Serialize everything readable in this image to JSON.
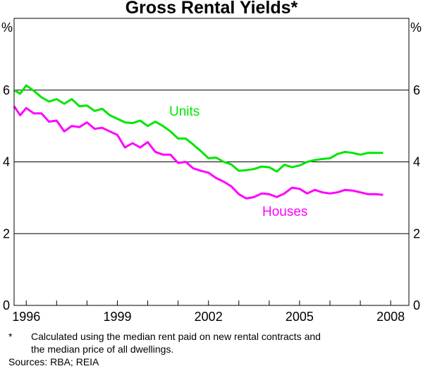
{
  "chart_data": {
    "type": "line",
    "title": "Gross Rental Yields*",
    "ylabel_left": "%",
    "ylabel_right": "%",
    "xlim": [
      1995.6,
      2008.6
    ],
    "ylim": [
      0,
      8
    ],
    "yticks": [
      0,
      2,
      4,
      6
    ],
    "xticks": [
      1996,
      1999,
      2002,
      2005,
      2008
    ],
    "grid": "horizontal",
    "series": [
      {
        "name": "Units",
        "color": "#00e600",
        "x": [
          1995.6,
          1995.8,
          1996.0,
          1996.25,
          1996.5,
          1996.75,
          1997.0,
          1997.25,
          1997.5,
          1997.75,
          1998.0,
          1998.25,
          1998.5,
          1998.75,
          1999.0,
          1999.25,
          1999.5,
          1999.75,
          2000.0,
          2000.25,
          2000.5,
          2000.75,
          2001.0,
          2001.25,
          2001.5,
          2001.75,
          2002.0,
          2002.25,
          2002.5,
          2002.75,
          2003.0,
          2003.25,
          2003.5,
          2003.75,
          2004.0,
          2004.25,
          2004.5,
          2004.75,
          2005.0,
          2005.25,
          2005.5,
          2005.75,
          2006.0,
          2006.25,
          2006.5,
          2006.75,
          2007.0,
          2007.25,
          2007.5,
          2007.75
        ],
        "values": [
          6.0,
          5.9,
          6.13,
          5.98,
          5.8,
          5.68,
          5.75,
          5.62,
          5.75,
          5.55,
          5.57,
          5.42,
          5.48,
          5.3,
          5.2,
          5.1,
          5.08,
          5.15,
          5.0,
          5.12,
          5.0,
          4.85,
          4.65,
          4.65,
          4.48,
          4.3,
          4.1,
          4.12,
          4.0,
          3.93,
          3.75,
          3.77,
          3.8,
          3.87,
          3.85,
          3.73,
          3.92,
          3.85,
          3.9,
          4.0,
          4.05,
          4.08,
          4.1,
          4.22,
          4.28,
          4.25,
          4.2,
          4.25,
          4.25,
          4.25
        ]
      },
      {
        "name": "Houses",
        "color": "#ff00ff",
        "x": [
          1995.6,
          1995.8,
          1996.0,
          1996.25,
          1996.5,
          1996.75,
          1997.0,
          1997.25,
          1997.5,
          1997.75,
          1998.0,
          1998.25,
          1998.5,
          1998.75,
          1999.0,
          1999.25,
          1999.5,
          1999.75,
          2000.0,
          2000.25,
          2000.5,
          2000.75,
          2001.0,
          2001.25,
          2001.5,
          2001.75,
          2002.0,
          2002.25,
          2002.5,
          2002.75,
          2003.0,
          2003.25,
          2003.5,
          2003.75,
          2004.0,
          2004.25,
          2004.5,
          2004.75,
          2005.0,
          2005.25,
          2005.5,
          2005.75,
          2006.0,
          2006.25,
          2006.5,
          2006.75,
          2007.0,
          2007.25,
          2007.5,
          2007.75
        ],
        "values": [
          5.55,
          5.3,
          5.5,
          5.35,
          5.35,
          5.12,
          5.15,
          4.85,
          5.0,
          4.97,
          5.1,
          4.92,
          4.95,
          4.85,
          4.75,
          4.4,
          4.52,
          4.4,
          4.55,
          4.28,
          4.2,
          4.2,
          3.97,
          4.0,
          3.82,
          3.75,
          3.7,
          3.55,
          3.45,
          3.32,
          3.1,
          2.98,
          3.02,
          3.12,
          3.1,
          3.02,
          3.12,
          3.28,
          3.25,
          3.12,
          3.22,
          3.15,
          3.12,
          3.15,
          3.22,
          3.2,
          3.15,
          3.1,
          3.1,
          3.08
        ]
      }
    ],
    "series_labels": [
      "Units",
      "Houses"
    ]
  },
  "notes": {
    "footnote_star": "*",
    "footnote_line1": "Calculated using the median rent paid on new rental contracts and",
    "footnote_line2": "the median price of all dwellings.",
    "sources": "Sources: RBA; REIA"
  }
}
